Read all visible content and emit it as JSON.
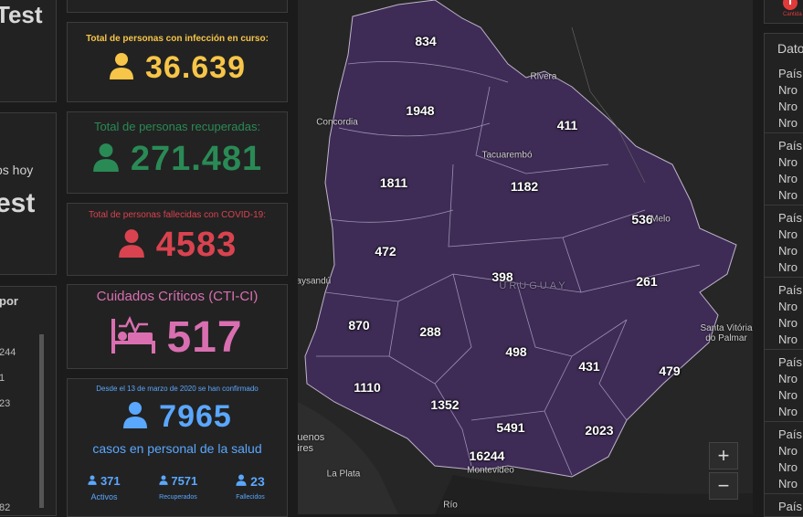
{
  "colors": {
    "active": "#f7c548",
    "recovered": "#2a8a55",
    "deceased": "#d9434f",
    "critical": "#d96fb0",
    "health": "#5aa7ff",
    "map_fill": "#3e2c56"
  },
  "left_column": {
    "title_fragment_top": "Test",
    "subtitle_fragment": "os hoy",
    "title_fragment_mid": "est",
    "list_title_fragment": "por",
    "list_values": [
      "244",
      "1",
      "23",
      "82"
    ]
  },
  "active": {
    "label": "Total de personas con infección en curso:",
    "value": "36.639",
    "icon": "person-icon"
  },
  "recovered": {
    "label": "Total de personas recuperadas:",
    "value": "271.481",
    "icon": "person-icon"
  },
  "deceased": {
    "label": "Total de personas fallecidas con COVID-19:",
    "value": "4583",
    "icon": "person-icon"
  },
  "critical": {
    "label": "Cuidados Críticos (CTI-CI)",
    "value": "517",
    "icon": "hospital-bed-icon"
  },
  "health_staff": {
    "note": "Desde el 13 de marzo de 2020 se han confirmado",
    "value": "7965",
    "caption": "casos en personal de la salud",
    "breakdown": [
      {
        "value": "371",
        "label": "Activos"
      },
      {
        "value": "7571",
        "label": "Recuperados"
      },
      {
        "value": "23",
        "label": "Fallecidos"
      }
    ]
  },
  "map": {
    "country_label": "URUGUAY",
    "departments": [
      {
        "name": "artigas",
        "value": "834"
      },
      {
        "name": "salto",
        "value": "1948"
      },
      {
        "name": "rivera",
        "value": "411"
      },
      {
        "name": "paysandu",
        "value": "1811"
      },
      {
        "name": "tacuarembo",
        "value": "1182"
      },
      {
        "name": "cerro-largo",
        "value": "536"
      },
      {
        "name": "rio-negro",
        "value": "472"
      },
      {
        "name": "durazno",
        "value": "398"
      },
      {
        "name": "treinta-y-tres",
        "value": "261"
      },
      {
        "name": "soriano",
        "value": "870"
      },
      {
        "name": "flores",
        "value": "288"
      },
      {
        "name": "florida",
        "value": "498"
      },
      {
        "name": "lavalleja",
        "value": "431"
      },
      {
        "name": "rocha",
        "value": "479"
      },
      {
        "name": "colonia",
        "value": "1110"
      },
      {
        "name": "san-jose",
        "value": "1352"
      },
      {
        "name": "canelones",
        "value": "5491"
      },
      {
        "name": "maldonado",
        "value": "2023"
      },
      {
        "name": "montevideo",
        "value": "16244"
      }
    ],
    "cities": [
      "Rivera",
      "Concordia",
      "Tacuarembó",
      "Melo",
      "Paysandú",
      "Santa Vitória do Palmar",
      "Buenos Aires",
      "La Plata",
      "Montevideo",
      "Río"
    ],
    "zoom_in": "+",
    "zoom_out": "−"
  },
  "right_column": {
    "header_fragment": "Dato",
    "top_caption_fragment": "Cantida",
    "row_label_country": "País",
    "row_label_number": "Nro"
  }
}
